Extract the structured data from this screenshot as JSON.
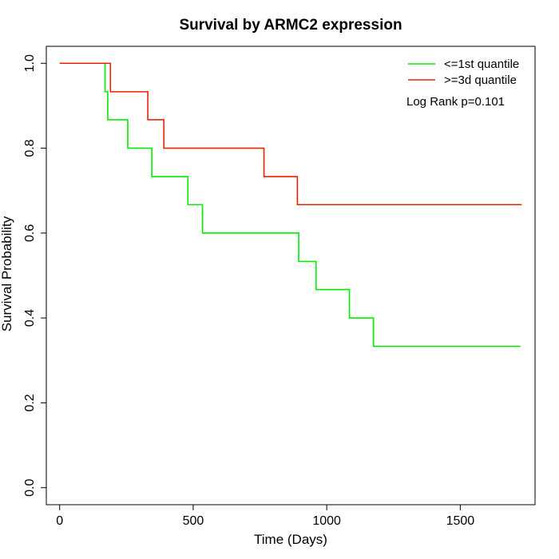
{
  "chart_data": {
    "type": "line",
    "title": "Survival by ARMC2 expression",
    "xlabel": "Time (Days)",
    "ylabel": "Survival Probability",
    "xlim": [
      -50,
      1780
    ],
    "ylim": [
      -0.04,
      1.04
    ],
    "x_ticks": [
      0,
      500,
      1000,
      1500
    ],
    "y_ticks": [
      0.0,
      0.2,
      0.4,
      0.6,
      0.8,
      1.0
    ],
    "x_tick_labels": [
      "0",
      "500",
      "1000",
      "1500"
    ],
    "y_tick_labels": [
      "0.0",
      "0.2",
      "0.4",
      "0.6",
      "0.8",
      "1.0"
    ],
    "grid": false,
    "legend_position": "top-right",
    "annotation": "Log Rank p=0.101",
    "series": [
      {
        "name": "<=1st quantile",
        "color": "#00ee00",
        "step": true,
        "x": [
          0,
          170,
          180,
          255,
          345,
          480,
          535,
          895,
          960,
          1085,
          1175,
          1725
        ],
        "y": [
          1.0,
          0.933,
          0.867,
          0.8,
          0.733,
          0.667,
          0.6,
          0.533,
          0.467,
          0.4,
          0.333,
          0.333
        ]
      },
      {
        "name": ">=3d quantile",
        "color": "#ee2200",
        "step": true,
        "x": [
          0,
          190,
          330,
          390,
          765,
          890,
          1730
        ],
        "y": [
          1.0,
          0.933,
          0.867,
          0.8,
          0.733,
          0.667,
          0.667
        ]
      }
    ]
  }
}
